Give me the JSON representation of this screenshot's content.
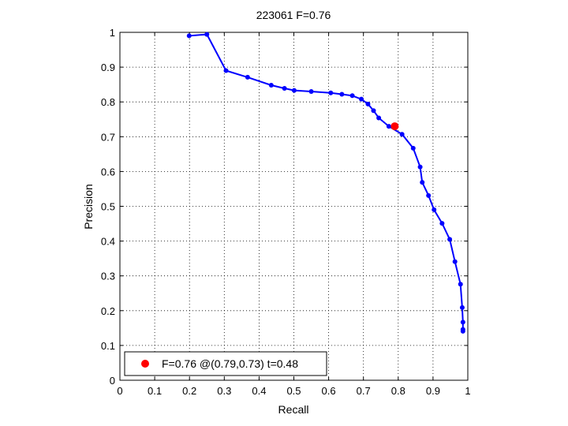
{
  "chart_data": {
    "type": "line",
    "title": "223061 F=0.76",
    "xlabel": "Recall",
    "ylabel": "Precision",
    "xlim": [
      0,
      1
    ],
    "ylim": [
      0,
      1
    ],
    "x_ticks": [
      "0",
      "0.1",
      "0.2",
      "0.3",
      "0.4",
      "0.5",
      "0.6",
      "0.7",
      "0.8",
      "0.9",
      "1"
    ],
    "y_ticks": [
      "0",
      "0.1",
      "0.2",
      "0.3",
      "0.4",
      "0.5",
      "0.6",
      "0.7",
      "0.8",
      "0.9",
      "1"
    ],
    "grid": true,
    "legend_position": "bottom-left",
    "series": [
      {
        "color": "#0000ff",
        "marker": "dot",
        "points": [
          [
            0.199,
            0.99
          ],
          [
            0.25,
            0.994
          ],
          [
            0.305,
            0.89
          ],
          [
            0.367,
            0.871
          ],
          [
            0.435,
            0.848
          ],
          [
            0.473,
            0.839
          ],
          [
            0.501,
            0.833
          ],
          [
            0.55,
            0.83
          ],
          [
            0.606,
            0.826
          ],
          [
            0.638,
            0.822
          ],
          [
            0.668,
            0.818
          ],
          [
            0.694,
            0.808
          ],
          [
            0.713,
            0.794
          ],
          [
            0.729,
            0.775
          ],
          [
            0.744,
            0.754
          ],
          [
            0.773,
            0.73
          ],
          [
            0.811,
            0.707
          ],
          [
            0.843,
            0.667
          ],
          [
            0.863,
            0.613
          ],
          [
            0.869,
            0.569
          ],
          [
            0.887,
            0.531
          ],
          [
            0.903,
            0.49
          ],
          [
            0.926,
            0.451
          ],
          [
            0.948,
            0.405
          ],
          [
            0.963,
            0.341
          ],
          [
            0.979,
            0.276
          ],
          [
            0.984,
            0.209
          ],
          [
            0.986,
            0.167
          ],
          [
            0.986,
            0.146
          ],
          [
            0.986,
            0.141
          ]
        ]
      }
    ],
    "highlight_point": {
      "recall": 0.79,
      "precision": 0.73,
      "color": "#ff0000",
      "label": "F=0.76 @(0.79,0.73) t=0.48"
    }
  }
}
